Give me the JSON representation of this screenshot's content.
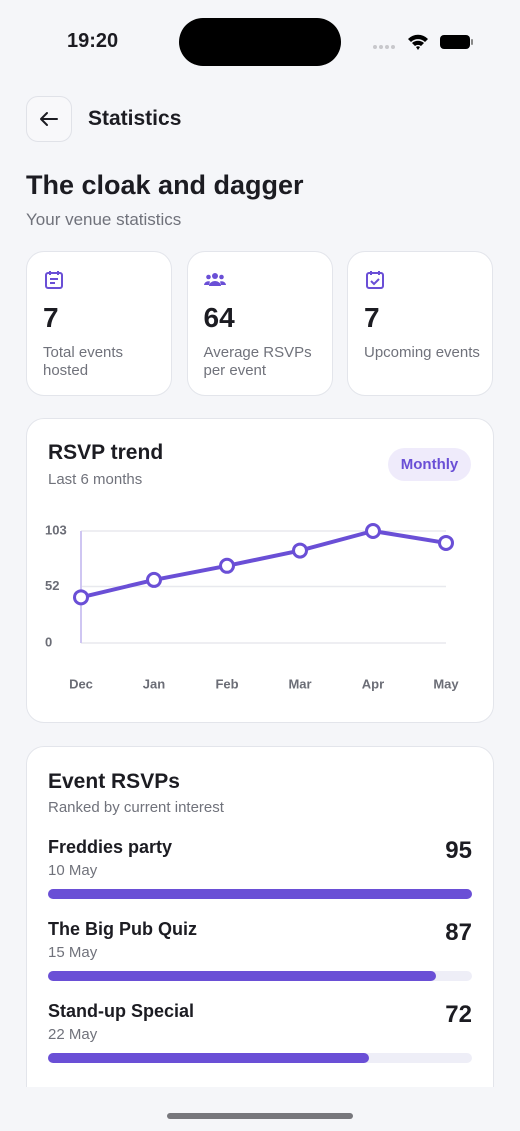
{
  "status_bar": {
    "time": "19:20"
  },
  "header": {
    "title": "Statistics"
  },
  "venue": {
    "name": "The cloak and dagger",
    "subtitle": "Your venue statistics"
  },
  "stats": [
    {
      "value": 7,
      "label": "Total events hosted"
    },
    {
      "value": 64,
      "label": "Average RSVPs per event"
    },
    {
      "value": 7,
      "label": "Upcoming events"
    }
  ],
  "chart_data": {
    "type": "line",
    "title": "RSVP trend",
    "subtitle": "Last 6 months",
    "period": "Monthly",
    "categories": [
      "Dec",
      "Jan",
      "Feb",
      "Mar",
      "Apr",
      "May"
    ],
    "values": [
      42,
      58,
      71,
      85,
      103,
      92
    ],
    "color": "#6a4fd6",
    "ylim": [
      0,
      103
    ],
    "yticks": [
      0,
      52,
      103
    ],
    "grid": true
  },
  "event_rsvps": {
    "title": "Event RSVPs",
    "subtitle": "Ranked by current interest",
    "events": [
      {
        "name": "Freddies party",
        "date": "10 May",
        "rsvps": 95
      },
      {
        "name": "The Big Pub Quiz",
        "date": "15 May",
        "rsvps": 87
      },
      {
        "name": "Stand-up Special",
        "date": "22 May",
        "rsvps": 72
      }
    ]
  }
}
